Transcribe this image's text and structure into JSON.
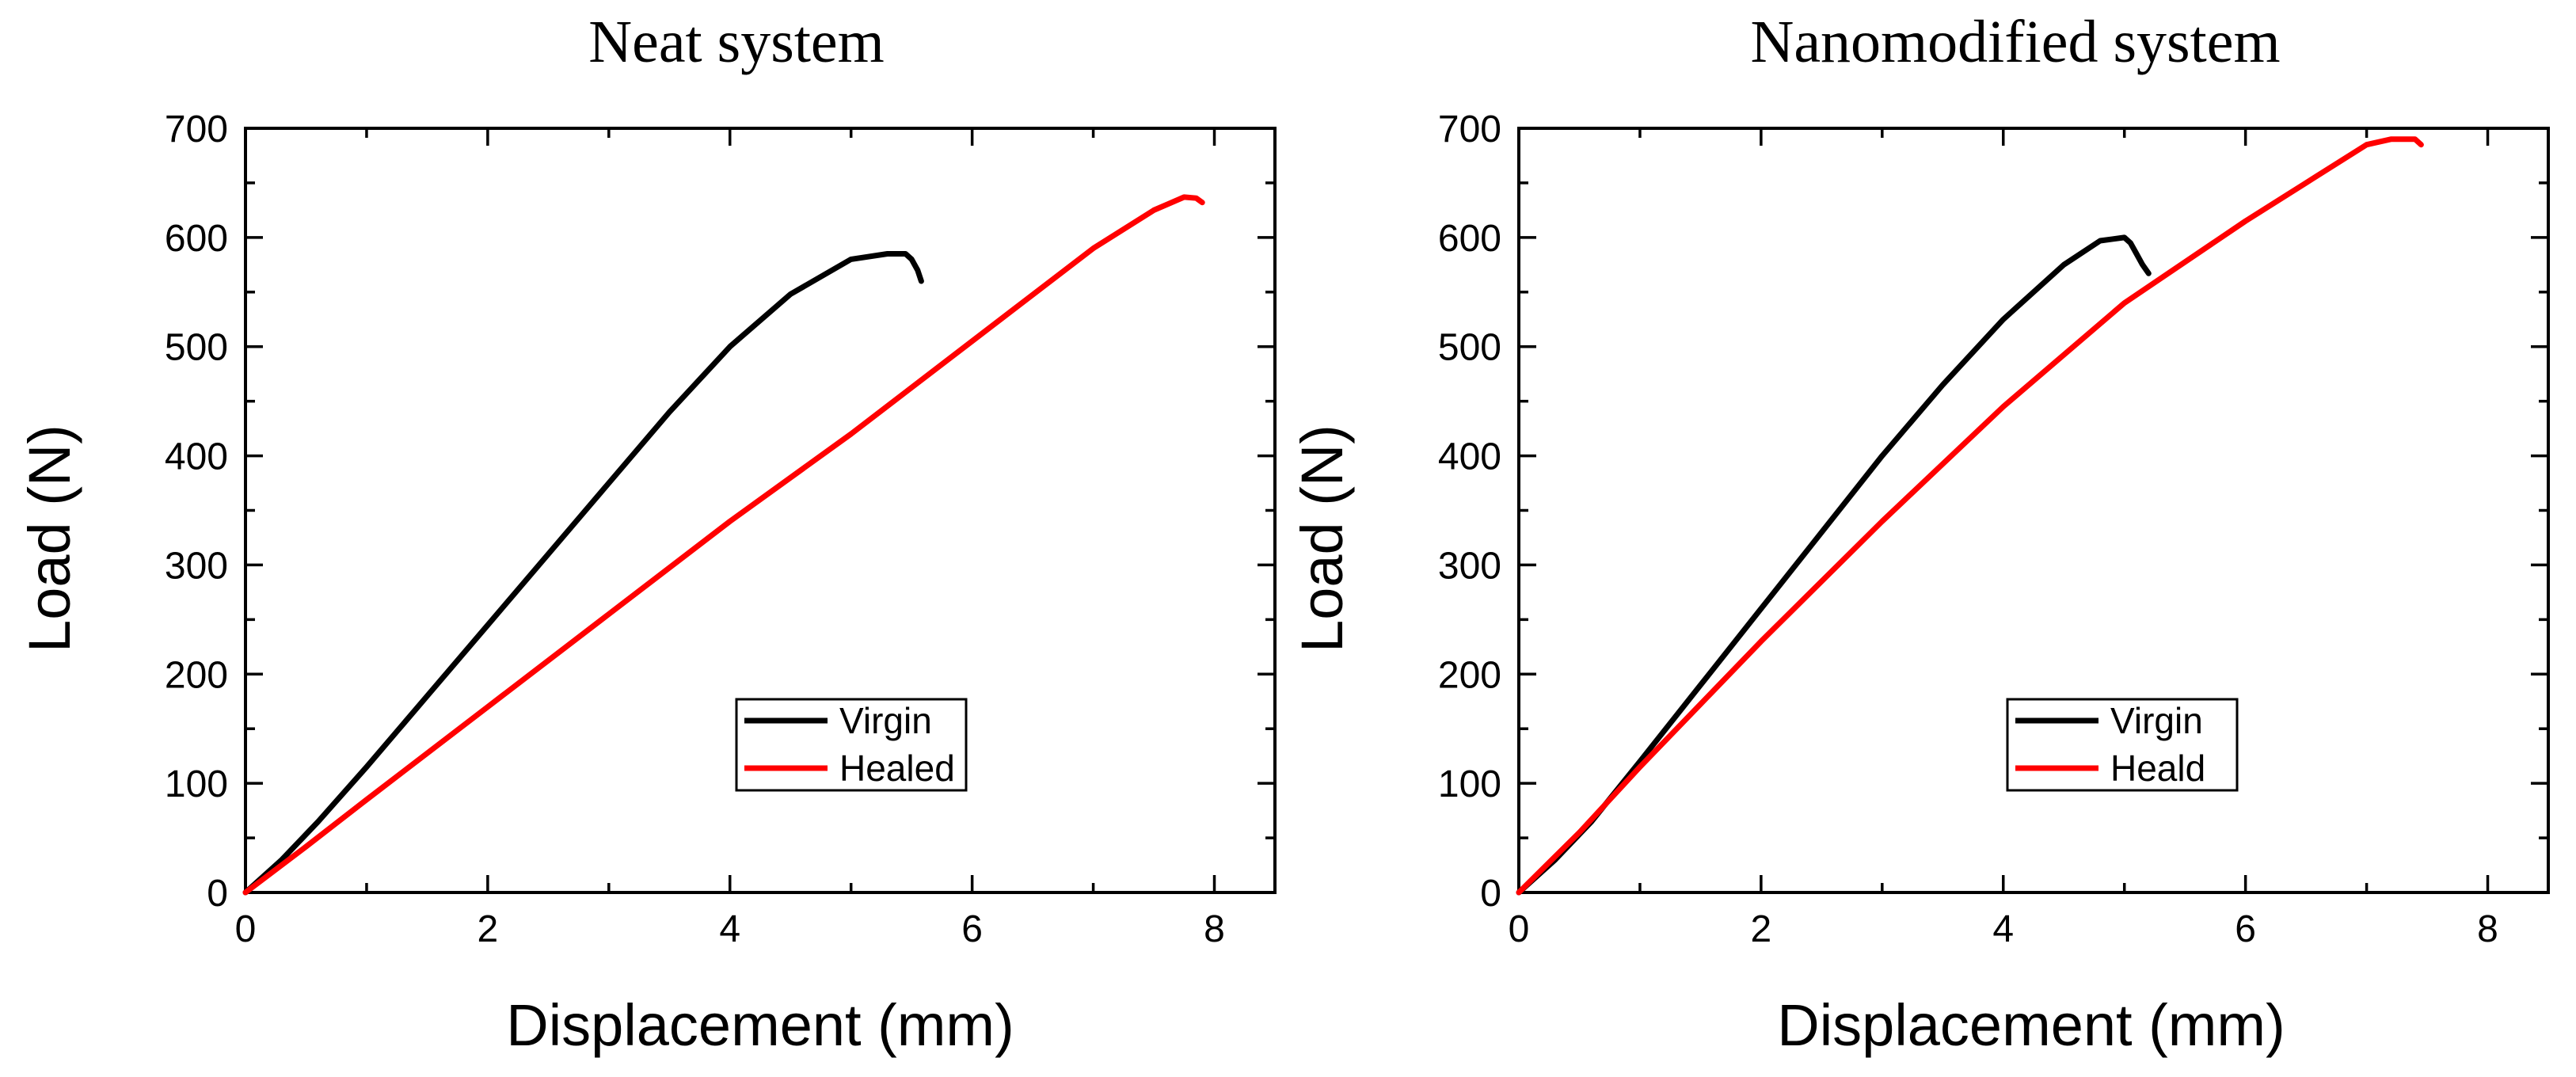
{
  "chart_data": [
    {
      "type": "line",
      "title": "Neat system",
      "xlabel": "Displacement (mm)",
      "ylabel": "Load (N)",
      "xlim": [
        0,
        8.5
      ],
      "ylim": [
        0,
        700
      ],
      "xticks": [
        0,
        2,
        4,
        6,
        8
      ],
      "yticks": [
        0,
        100,
        200,
        300,
        400,
        500,
        600,
        700
      ],
      "grid": false,
      "legend_position": "lower-right-center",
      "series": [
        {
          "name": "Virgin",
          "color": "#000000",
          "x": [
            0,
            0.3,
            0.6,
            1.0,
            1.5,
            2.0,
            2.5,
            3.0,
            3.5,
            4.0,
            4.5,
            5.0,
            5.3,
            5.45,
            5.5,
            5.55,
            5.58
          ],
          "y": [
            0,
            30,
            65,
            115,
            180,
            245,
            310,
            375,
            440,
            500,
            548,
            580,
            585,
            585,
            580,
            570,
            560
          ]
        },
        {
          "name": "Healed",
          "color": "#ff0000",
          "x": [
            0,
            0.5,
            1.0,
            2.0,
            3.0,
            4.0,
            5.0,
            6.0,
            7.0,
            7.5,
            7.75,
            7.85,
            7.9
          ],
          "y": [
            0,
            42,
            85,
            170,
            255,
            340,
            420,
            505,
            590,
            625,
            637,
            636,
            632
          ]
        }
      ]
    },
    {
      "type": "line",
      "title": "Nanomodified system",
      "xlabel": "Displacement (mm)",
      "ylabel": "Load (N)",
      "xlim": [
        0,
        8.5
      ],
      "ylim": [
        0,
        700
      ],
      "xticks": [
        0,
        2,
        4,
        6,
        8
      ],
      "yticks": [
        0,
        100,
        200,
        300,
        400,
        500,
        600,
        700
      ],
      "grid": false,
      "legend_position": "lower-right-center",
      "series": [
        {
          "name": "Virgin",
          "color": "#000000",
          "x": [
            0,
            0.3,
            0.6,
            1.0,
            1.5,
            2.0,
            2.5,
            3.0,
            3.5,
            4.0,
            4.5,
            4.8,
            5.0,
            5.05,
            5.1,
            5.15,
            5.2
          ],
          "y": [
            0,
            30,
            65,
            120,
            190,
            260,
            330,
            400,
            465,
            525,
            575,
            597,
            600,
            595,
            585,
            575,
            567
          ]
        },
        {
          "name": "Heald",
          "color": "#ff0000",
          "x": [
            0,
            0.5,
            1.0,
            2.0,
            3.0,
            4.0,
            5.0,
            6.0,
            6.5,
            7.0,
            7.2,
            7.4,
            7.45
          ],
          "y": [
            0,
            55,
            115,
            230,
            340,
            445,
            540,
            615,
            650,
            685,
            690,
            690,
            685
          ]
        }
      ]
    }
  ]
}
